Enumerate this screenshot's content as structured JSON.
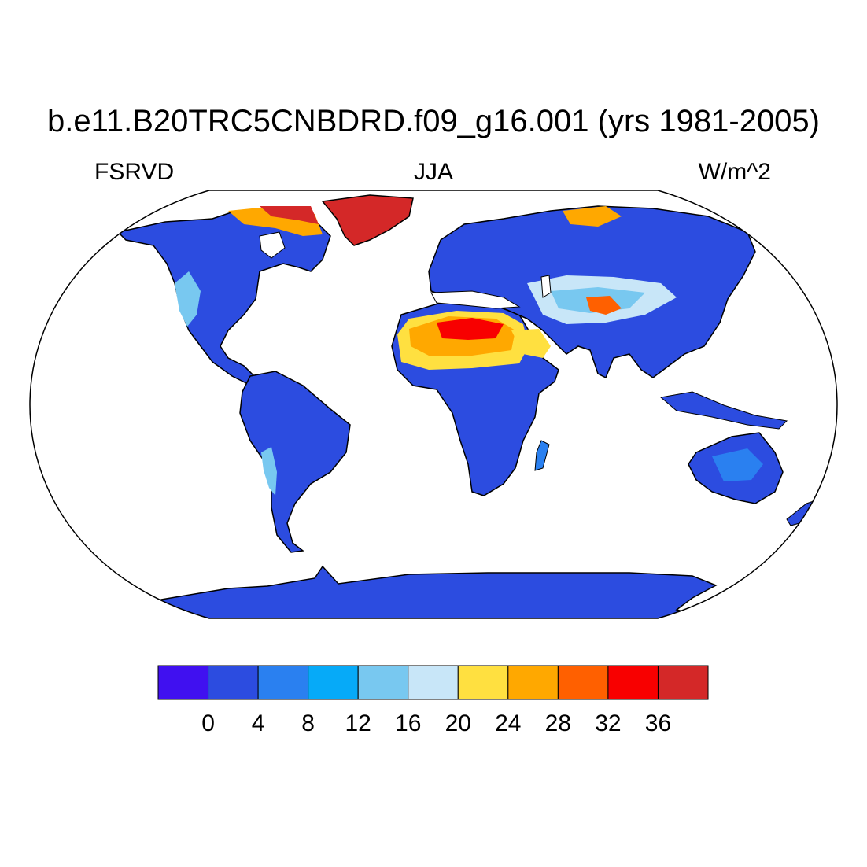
{
  "title": "b.e11.B20TRC5CNBDRD.f09_g16.001 (yrs 1981-2005)",
  "left_label": "FSRVD",
  "center_label": "JJA",
  "right_label": "W/m^2",
  "colorbar": {
    "colors": [
      "#4010f0",
      "#2c4ce0",
      "#2a80f0",
      "#06aaf8",
      "#78c8f0",
      "#c8e6f8",
      "#ffe040",
      "#ffa800",
      "#ff6000",
      "#f80000",
      "#d42828"
    ],
    "labels": [
      "0",
      "4",
      "8",
      "12",
      "16",
      "20",
      "24",
      "28",
      "32",
      "36"
    ]
  },
  "map_colors": {
    "ocean": "#ffffff",
    "land_low": "#2c4ce0",
    "land_mid": "#2a80f0",
    "land_light": "#78c8f0",
    "land_pale": "#c8e6f8",
    "desert_yellow": "#ffe040",
    "desert_orange": "#ffa800",
    "desert_red": "#f80000",
    "greenland": "#d42828"
  }
}
